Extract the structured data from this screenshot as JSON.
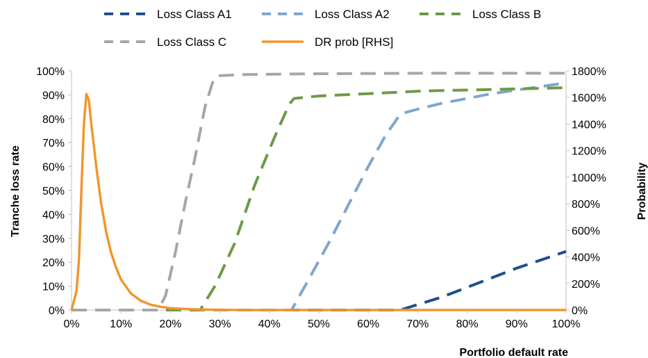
{
  "chart_data": {
    "type": "line",
    "x": [
      0,
      5,
      10,
      15,
      20,
      25,
      30,
      35,
      40,
      45,
      50,
      55,
      60,
      65,
      70,
      75,
      80,
      85,
      90,
      95,
      100
    ],
    "x_tick_labels": [
      "0%",
      "10%",
      "20%",
      "30%",
      "40%",
      "50%",
      "60%",
      "70%",
      "80%",
      "90%",
      "100%"
    ],
    "x_ticks": [
      0,
      10,
      20,
      30,
      40,
      50,
      60,
      70,
      80,
      90,
      100
    ],
    "xlim": [
      0,
      100
    ],
    "ylim": [
      0,
      100
    ],
    "y_ticks": [
      0,
      10,
      20,
      30,
      40,
      50,
      60,
      70,
      80,
      90,
      100
    ],
    "y_tick_labels": [
      "0%",
      "10%",
      "20%",
      "30%",
      "40%",
      "50%",
      "60%",
      "70%",
      "80%",
      "90%",
      "100%"
    ],
    "y2lim": [
      0,
      1800
    ],
    "y2_ticks": [
      0,
      200,
      400,
      600,
      800,
      1000,
      1200,
      1400,
      1600,
      1800
    ],
    "y2_tick_labels": [
      "0%",
      "200%",
      "400%",
      "600%",
      "800%",
      "1000%",
      "1200%",
      "1400%",
      "1600%",
      "1800%"
    ],
    "xlabel": "Portfolio default rate",
    "ylabel": "Tranche loss rate",
    "y2label": "Probability",
    "legend_position": "top",
    "grid": false,
    "series": [
      {
        "name": "Loss Class A1",
        "color": "#1f4e8c",
        "style": "dashed",
        "axis": "left",
        "points": [
          [
            0,
            0
          ],
          [
            66.5,
            0
          ],
          [
            70,
            2.3
          ],
          [
            75,
            5.5
          ],
          [
            80,
            9.5
          ],
          [
            85,
            13.5
          ],
          [
            90,
            17.5
          ],
          [
            95,
            21
          ],
          [
            100,
            24.5
          ]
        ]
      },
      {
        "name": "Loss Class A2",
        "color": "#7fa6cc",
        "style": "dashed",
        "axis": "left",
        "points": [
          [
            0,
            0
          ],
          [
            44.5,
            0
          ],
          [
            48,
            13
          ],
          [
            52,
            28
          ],
          [
            56,
            44
          ],
          [
            60,
            60
          ],
          [
            63.5,
            73
          ],
          [
            66.5,
            82
          ],
          [
            70,
            84
          ],
          [
            75,
            86.5
          ],
          [
            80,
            88.5
          ],
          [
            85,
            90.5
          ],
          [
            90,
            92
          ],
          [
            95,
            93.5
          ],
          [
            100,
            95
          ]
        ]
      },
      {
        "name": "Loss Class B",
        "color": "#6e9a47",
        "style": "dashed",
        "axis": "left",
        "points": [
          [
            0,
            0
          ],
          [
            26,
            0
          ],
          [
            29,
            10
          ],
          [
            33,
            28
          ],
          [
            37,
            52
          ],
          [
            41,
            72
          ],
          [
            44,
            86
          ],
          [
            45,
            88.5
          ],
          [
            50,
            89.5
          ],
          [
            55,
            90
          ],
          [
            60,
            90.5
          ],
          [
            65,
            91
          ],
          [
            70,
            91.5
          ],
          [
            75,
            91.8
          ],
          [
            80,
            92
          ],
          [
            85,
            92.2
          ],
          [
            90,
            92.5
          ],
          [
            95,
            92.7
          ],
          [
            100,
            93
          ]
        ]
      },
      {
        "name": "Loss Class C",
        "color": "#a6a6a6",
        "style": "dashed",
        "axis": "left",
        "points": [
          [
            0,
            0
          ],
          [
            17.5,
            0
          ],
          [
            19,
            6
          ],
          [
            21,
            24
          ],
          [
            23,
            45
          ],
          [
            25,
            64
          ],
          [
            27,
            85
          ],
          [
            28.5,
            95
          ],
          [
            29.5,
            98
          ],
          [
            35,
            98.5
          ],
          [
            50,
            98.8
          ],
          [
            70,
            99
          ],
          [
            100,
            99
          ]
        ]
      },
      {
        "name": "DR prob [RHS]",
        "color": "#f0962e",
        "style": "solid",
        "axis": "right",
        "points": [
          [
            0,
            0
          ],
          [
            0.5,
            70
          ],
          [
            1,
            140
          ],
          [
            1.5,
            380
          ],
          [
            2,
            900
          ],
          [
            2.5,
            1400
          ],
          [
            3,
            1625
          ],
          [
            3.5,
            1580
          ],
          [
            4,
            1400
          ],
          [
            5,
            1080
          ],
          [
            6,
            800
          ],
          [
            7,
            590
          ],
          [
            8,
            430
          ],
          [
            9,
            320
          ],
          [
            10,
            230
          ],
          [
            12,
            125
          ],
          [
            14,
            70
          ],
          [
            16,
            40
          ],
          [
            18,
            24
          ],
          [
            20,
            14
          ],
          [
            23,
            8
          ],
          [
            26,
            4
          ],
          [
            30,
            2
          ],
          [
            35,
            0
          ],
          [
            100,
            0
          ]
        ]
      }
    ]
  }
}
